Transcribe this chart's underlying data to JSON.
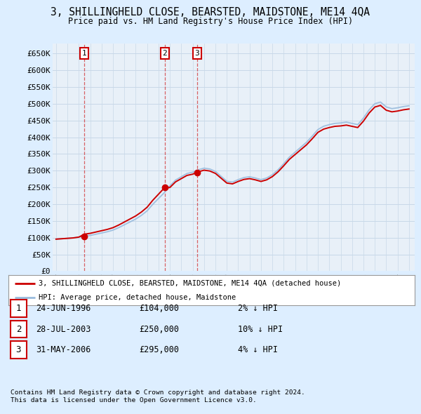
{
  "title": "3, SHILLINGHELD CLOSE, BEARSTED, MAIDSTONE, ME14 4QA",
  "subtitle": "Price paid vs. HM Land Registry's House Price Index (HPI)",
  "ylim": [
    0,
    680000
  ],
  "yticks": [
    0,
    50000,
    100000,
    150000,
    200000,
    250000,
    300000,
    350000,
    400000,
    450000,
    500000,
    550000,
    600000,
    650000
  ],
  "ytick_labels": [
    "£0",
    "£50K",
    "£100K",
    "£150K",
    "£200K",
    "£250K",
    "£300K",
    "£350K",
    "£400K",
    "£450K",
    "£500K",
    "£550K",
    "£600K",
    "£650K"
  ],
  "sale_dates": [
    "1996-06-24",
    "2003-07-28",
    "2006-05-31"
  ],
  "sale_prices": [
    104000,
    250000,
    295000
  ],
  "sale_labels": [
    "1",
    "2",
    "3"
  ],
  "legend_house_label": "3, SHILLINGHELD CLOSE, BEARSTED, MAIDSTONE, ME14 4QA (detached house)",
  "legend_hpi_label": "HPI: Average price, detached house, Maidstone",
  "table_rows": [
    [
      "1",
      "24-JUN-1996",
      "£104,000",
      "2% ↓ HPI"
    ],
    [
      "2",
      "28-JUL-2003",
      "£250,000",
      "10% ↓ HPI"
    ],
    [
      "3",
      "31-MAY-2006",
      "£295,000",
      "4% ↓ HPI"
    ]
  ],
  "footnote1": "Contains HM Land Registry data © Crown copyright and database right 2024.",
  "footnote2": "This data is licensed under the Open Government Licence v3.0.",
  "house_color": "#cc0000",
  "hpi_color": "#99bbdd",
  "grid_color": "#c8d8e8",
  "bg_color": "#ddeeff",
  "plot_bg": "#e8f0f8",
  "vline_color": "#cc0000",
  "hpi_raw": [
    78,
    79,
    80,
    81,
    83,
    85,
    87,
    90,
    93,
    96,
    100,
    106,
    113,
    120,
    127,
    136,
    147,
    163,
    177,
    191,
    208,
    222,
    230,
    238,
    241,
    247,
    251,
    249,
    243,
    231,
    219,
    217,
    223,
    228,
    230,
    227,
    223,
    227,
    235,
    247,
    262,
    278,
    290,
    302,
    314,
    329,
    345,
    353,
    357,
    360,
    361,
    363,
    360,
    357,
    373,
    393,
    408,
    412,
    400,
    396,
    398,
    401,
    403
  ]
}
